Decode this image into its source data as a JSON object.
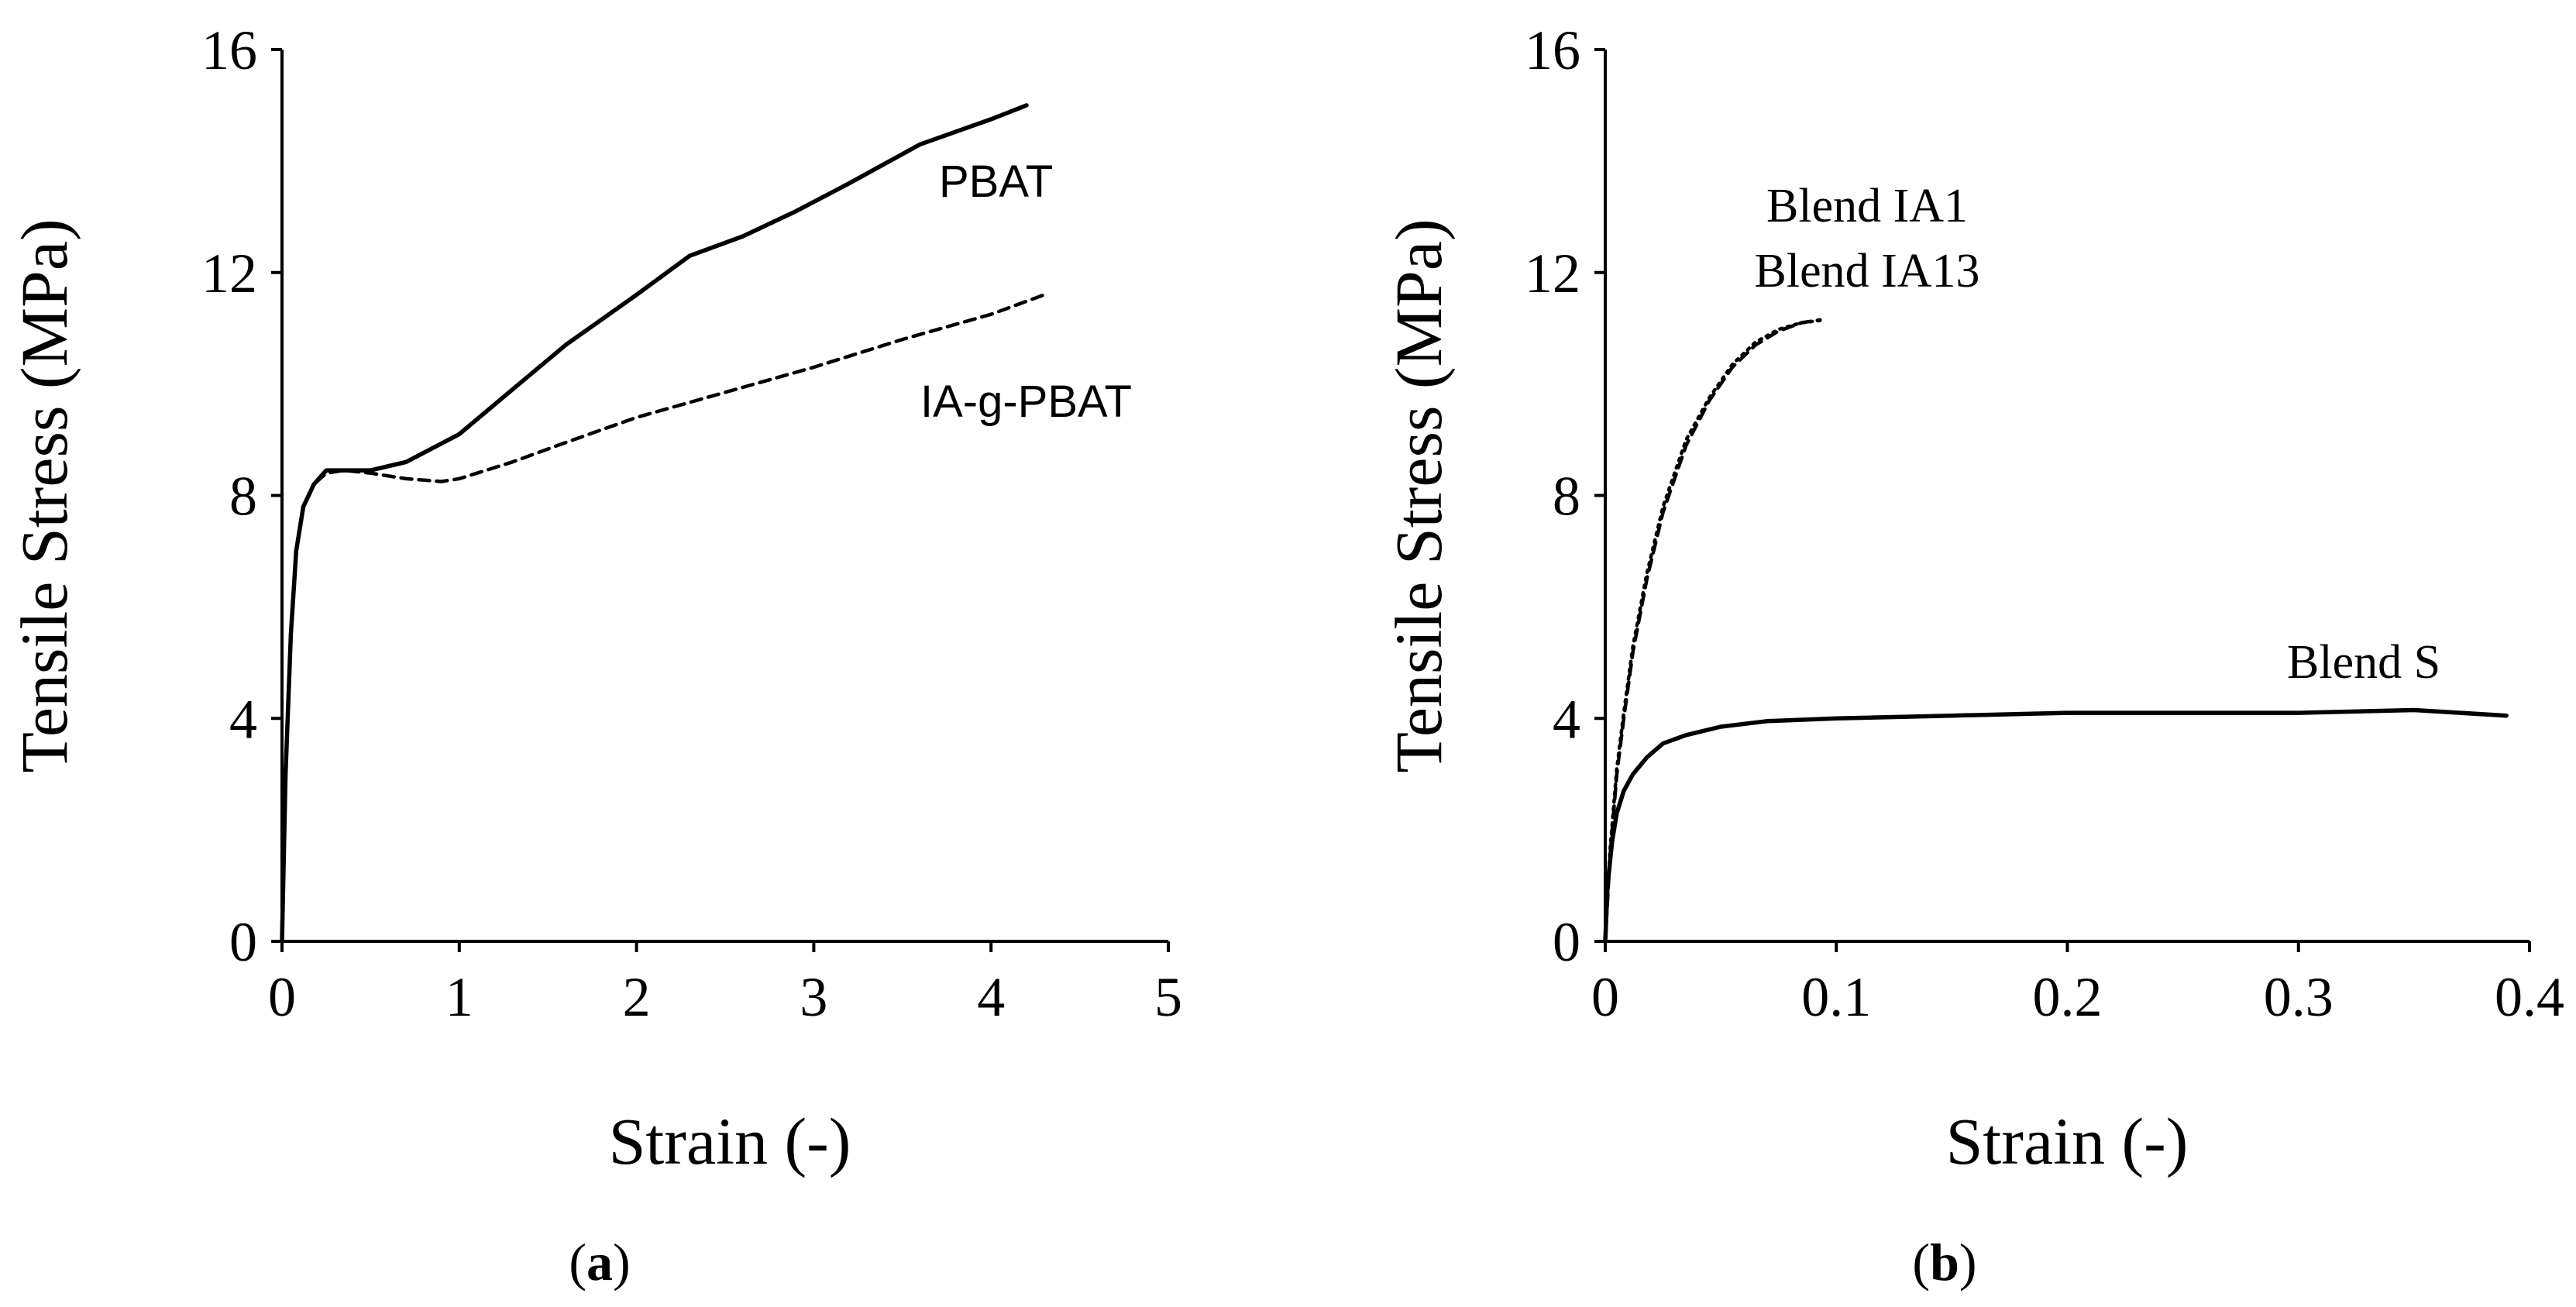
{
  "chart_data": [
    {
      "panel": "a",
      "panel_label_open": "(",
      "panel_label_letter": "a",
      "panel_label_close": ")",
      "type": "line",
      "xlabel": "Strain (-)",
      "ylabel": "Tensile Stress (MPa)",
      "xlim": [
        0,
        5
      ],
      "ylim": [
        0,
        16
      ],
      "xticks": [
        "0",
        "1",
        "2",
        "3",
        "4",
        "5"
      ],
      "yticks": [
        "0",
        "4",
        "8",
        "12",
        "16"
      ],
      "grid": false,
      "series": [
        {
          "name": "PBAT",
          "style": "solid",
          "x": [
            0,
            0.02,
            0.05,
            0.08,
            0.12,
            0.18,
            0.25,
            0.35,
            0.5,
            0.7,
            1.0,
            1.3,
            1.6,
            2.0,
            2.3,
            2.6,
            2.9,
            3.2,
            3.6,
            4.0,
            4.2
          ],
          "y": [
            0,
            3.0,
            5.5,
            7.0,
            7.8,
            8.2,
            8.45,
            8.45,
            8.45,
            8.6,
            9.1,
            9.9,
            10.7,
            11.6,
            12.3,
            12.65,
            13.1,
            13.6,
            14.3,
            14.75,
            15.0
          ]
        },
        {
          "name": "IA-g-PBAT",
          "style": "dashed",
          "x": [
            0,
            0.02,
            0.05,
            0.08,
            0.12,
            0.18,
            0.25,
            0.35,
            0.5,
            0.7,
            0.9,
            1.0,
            1.3,
            1.6,
            2.0,
            2.5,
            3.0,
            3.5,
            4.0,
            4.3
          ],
          "y": [
            0,
            3.0,
            5.5,
            7.0,
            7.8,
            8.2,
            8.4,
            8.45,
            8.4,
            8.3,
            8.25,
            8.3,
            8.6,
            8.95,
            9.4,
            9.85,
            10.3,
            10.8,
            11.25,
            11.6
          ]
        }
      ]
    },
    {
      "panel": "b",
      "panel_label_open": "(",
      "panel_label_letter": "b",
      "panel_label_close": ")",
      "type": "line",
      "xlabel": "Strain (-)",
      "ylabel": "Tensile Stress (MPa)",
      "xlim": [
        0,
        0.4
      ],
      "ylim": [
        0,
        16
      ],
      "xticks": [
        "0",
        "0.1",
        "0.2",
        "0.3",
        "0.4"
      ],
      "yticks": [
        "0",
        "4",
        "8",
        "12",
        "16"
      ],
      "grid": false,
      "series": [
        {
          "name": "Blend IA1",
          "style": "dashed",
          "x": [
            0,
            0.002,
            0.005,
            0.008,
            0.012,
            0.018,
            0.025,
            0.035,
            0.045,
            0.055,
            0.065,
            0.075,
            0.085,
            0.093
          ],
          "y": [
            0,
            1.5,
            3.0,
            4.0,
            5.2,
            6.5,
            7.7,
            8.9,
            9.7,
            10.3,
            10.7,
            10.95,
            11.1,
            11.15
          ]
        },
        {
          "name": "Blend IA13",
          "style": "dotted",
          "x": [
            0,
            0.002,
            0.005,
            0.008,
            0.012,
            0.018,
            0.025,
            0.035,
            0.045,
            0.055,
            0.065,
            0.075,
            0.085,
            0.095
          ],
          "y": [
            0,
            1.6,
            3.1,
            4.1,
            5.3,
            6.6,
            7.8,
            9.0,
            9.75,
            10.35,
            10.75,
            10.98,
            11.1,
            11.15
          ]
        },
        {
          "name": "Blend S",
          "style": "solid",
          "x": [
            0,
            0.001,
            0.003,
            0.005,
            0.008,
            0.012,
            0.018,
            0.025,
            0.035,
            0.05,
            0.07,
            0.1,
            0.15,
            0.2,
            0.25,
            0.3,
            0.35,
            0.39
          ],
          "y": [
            0,
            1.0,
            1.8,
            2.3,
            2.7,
            3.0,
            3.3,
            3.55,
            3.7,
            3.85,
            3.95,
            4.0,
            4.05,
            4.1,
            4.1,
            4.1,
            4.15,
            4.05
          ]
        }
      ],
      "annotation_lines": [
        "Blend IA1",
        "Blend IA13"
      ]
    }
  ]
}
